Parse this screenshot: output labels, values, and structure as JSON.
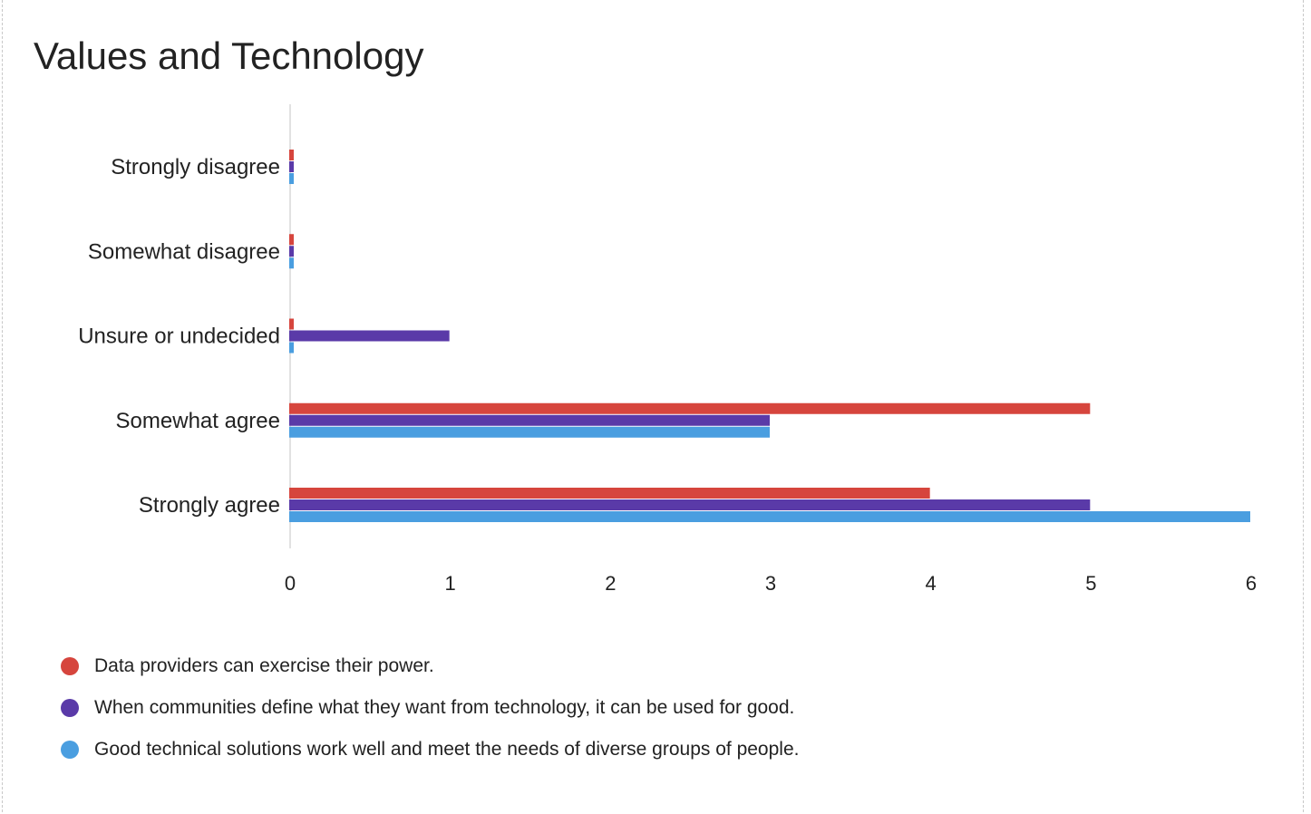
{
  "chart_data": {
    "type": "bar",
    "orientation": "horizontal",
    "title": "Values and Technology",
    "xlabel": "",
    "ylabel": "",
    "categories": [
      "Strongly disagree",
      "Somewhat disagree",
      "Unsure or undecided",
      "Somewhat agree",
      "Strongly agree"
    ],
    "xlim": [
      0,
      6
    ],
    "ticks": [
      "0",
      "1",
      "2",
      "3",
      "4",
      "5",
      "6"
    ],
    "grid": false,
    "legend_position": "bottom",
    "series": [
      {
        "name": "Data providers can exercise their power.",
        "color": "#d6453d",
        "values": [
          0,
          0,
          0,
          5,
          4
        ]
      },
      {
        "name": "When communities define what they want from technology, it can be used for good.",
        "color": "#5a3aa8",
        "values": [
          0,
          0,
          1,
          3,
          5
        ]
      },
      {
        "name": "Good technical solutions work well and meet the needs of diverse groups of people.",
        "color": "#4a9ee0",
        "values": [
          0,
          0,
          0,
          3,
          6
        ]
      }
    ]
  }
}
